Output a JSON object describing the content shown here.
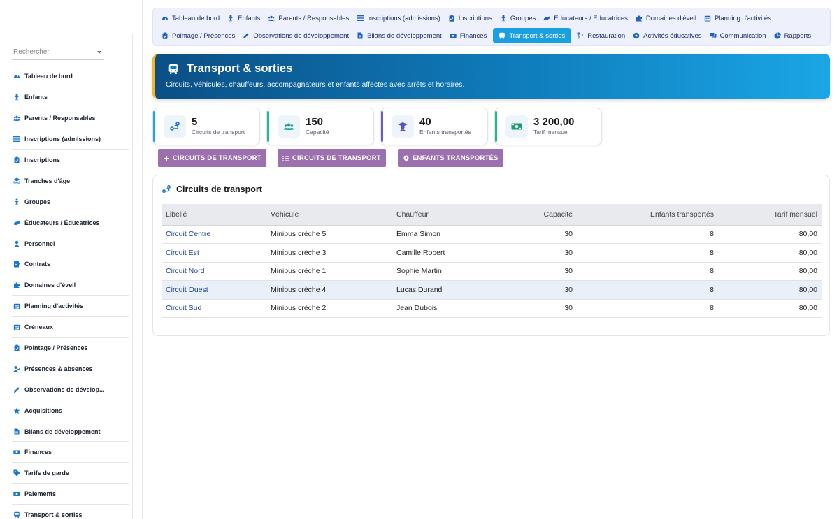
{
  "sidebar": {
    "search_placeholder": "Rechercher",
    "items": [
      {
        "label": "Tableau de bord",
        "icon": "dashboard-icon"
      },
      {
        "label": "Enfants",
        "icon": "child-icon"
      },
      {
        "label": "Parents / Responsables",
        "icon": "users-icon"
      },
      {
        "label": "Inscriptions (admissions)",
        "icon": "list-icon"
      },
      {
        "label": "Inscriptions",
        "icon": "clipboard-icon"
      },
      {
        "label": "Tranches d'âge",
        "icon": "layers-icon"
      },
      {
        "label": "Groupes",
        "icon": "child-group-icon"
      },
      {
        "label": "Éducateurs / Éducatrices",
        "icon": "hands-icon"
      },
      {
        "label": "Personnel",
        "icon": "person-icon"
      },
      {
        "label": "Contrats",
        "icon": "contract-icon"
      },
      {
        "label": "Domaines d'éveil",
        "icon": "puzzle-icon"
      },
      {
        "label": "Planning d'activités",
        "icon": "calendar-icon"
      },
      {
        "label": "Créneaux",
        "icon": "calendar-icon"
      },
      {
        "label": "Pointage / Présences",
        "icon": "clipboard-icon"
      },
      {
        "label": "Présences & absences",
        "icon": "user-check-icon"
      },
      {
        "label": "Observations de dévelop...",
        "icon": "pen-icon"
      },
      {
        "label": "Acquisitions",
        "icon": "star-icon"
      },
      {
        "label": "Bilans de développement",
        "icon": "file-icon"
      },
      {
        "label": "Finances",
        "icon": "money-icon"
      },
      {
        "label": "Tarifs de garde",
        "icon": "tag-icon"
      },
      {
        "label": "Paiements",
        "icon": "money-icon"
      },
      {
        "label": "Transport & sorties",
        "icon": "bus-icon"
      }
    ]
  },
  "topnav": {
    "row1": [
      {
        "label": "Tableau de bord",
        "icon": "dashboard-icon"
      },
      {
        "label": "Enfants",
        "icon": "child-icon"
      },
      {
        "label": "Parents / Responsables",
        "icon": "users-icon"
      },
      {
        "label": "Inscriptions (admissions)",
        "icon": "list-icon"
      },
      {
        "label": "Inscriptions",
        "icon": "clipboard-icon"
      },
      {
        "label": "Groupes",
        "icon": "child-group-icon"
      },
      {
        "label": "Éducateurs / Éducatrices",
        "icon": "hands-icon"
      },
      {
        "label": "Domaines d'éveil",
        "icon": "puzzle-icon"
      },
      {
        "label": "Planning d'activités",
        "icon": "calendar-icon"
      }
    ],
    "row2": [
      {
        "label": "Pointage / Présences",
        "icon": "clipboard-icon"
      },
      {
        "label": "Observations de développement",
        "icon": "pen-icon"
      },
      {
        "label": "Bilans de développement",
        "icon": "file-icon"
      },
      {
        "label": "Finances",
        "icon": "money-icon"
      },
      {
        "label": "Transport & sorties",
        "icon": "bus-icon",
        "active": true
      },
      {
        "label": "Restauration",
        "icon": "utensils-icon"
      },
      {
        "label": "Activités éducatives",
        "icon": "ball-icon"
      },
      {
        "label": "Communication",
        "icon": "chat-icon"
      },
      {
        "label": "Rapports",
        "icon": "pie-icon"
      }
    ]
  },
  "header": {
    "title": "Transport & sorties",
    "subtitle": "Circuits, véhicules, chauffeurs, accompagnateurs et enfants affectés avec arrêts et horaires."
  },
  "stats": [
    {
      "value": "5",
      "label": "Circuits de transport",
      "icon": "route-icon",
      "accent": "#1aa6e6"
    },
    {
      "value": "150",
      "label": "Capacité",
      "icon": "users-icon",
      "accent": "#1fb9a0"
    },
    {
      "value": "40",
      "label": "Enfants transportés",
      "icon": "graduate-icon",
      "accent": "#6a5acd"
    },
    {
      "value": "3 200,00",
      "label": "Tarif mensuel",
      "icon": "money-icon",
      "accent": "#1fb98a"
    }
  ],
  "actions": [
    {
      "label": "CIRCUITS DE TRANSPORT",
      "icon": "plus-icon"
    },
    {
      "label": "CIRCUITS DE TRANSPORT",
      "icon": "list-icon"
    },
    {
      "label": "ENFANTS TRANSPORTÉS",
      "icon": "map-pin-icon"
    }
  ],
  "panel": {
    "title": "Circuits de transport",
    "columns": [
      "Libellé",
      "Véhicule",
      "Chauffeur",
      "Capacité",
      "Enfants transportés",
      "Tarif mensuel"
    ],
    "rows": [
      [
        "Circuit Centre",
        "Minibus crèche 5",
        "Emma Simon",
        "30",
        "8",
        "80,00"
      ],
      [
        "Circuit Est",
        "Minibus crèche 3",
        "Camille Robert",
        "30",
        "8",
        "80,00"
      ],
      [
        "Circuit Nord",
        "Minibus crèche 1",
        "Sophie Martin",
        "30",
        "8",
        "80,00"
      ],
      [
        "Circuit Ouest",
        "Minibus crèche 4",
        "Lucas Durand",
        "30",
        "8",
        "80,00"
      ],
      [
        "Circuit Sud",
        "Minibus crèche 2",
        "Jean Dubois",
        "30",
        "8",
        "80,00"
      ]
    ]
  },
  "colors": {
    "accent": "#1a9fe0",
    "button": "#9c6fae",
    "banner_border": "#f2b829"
  }
}
